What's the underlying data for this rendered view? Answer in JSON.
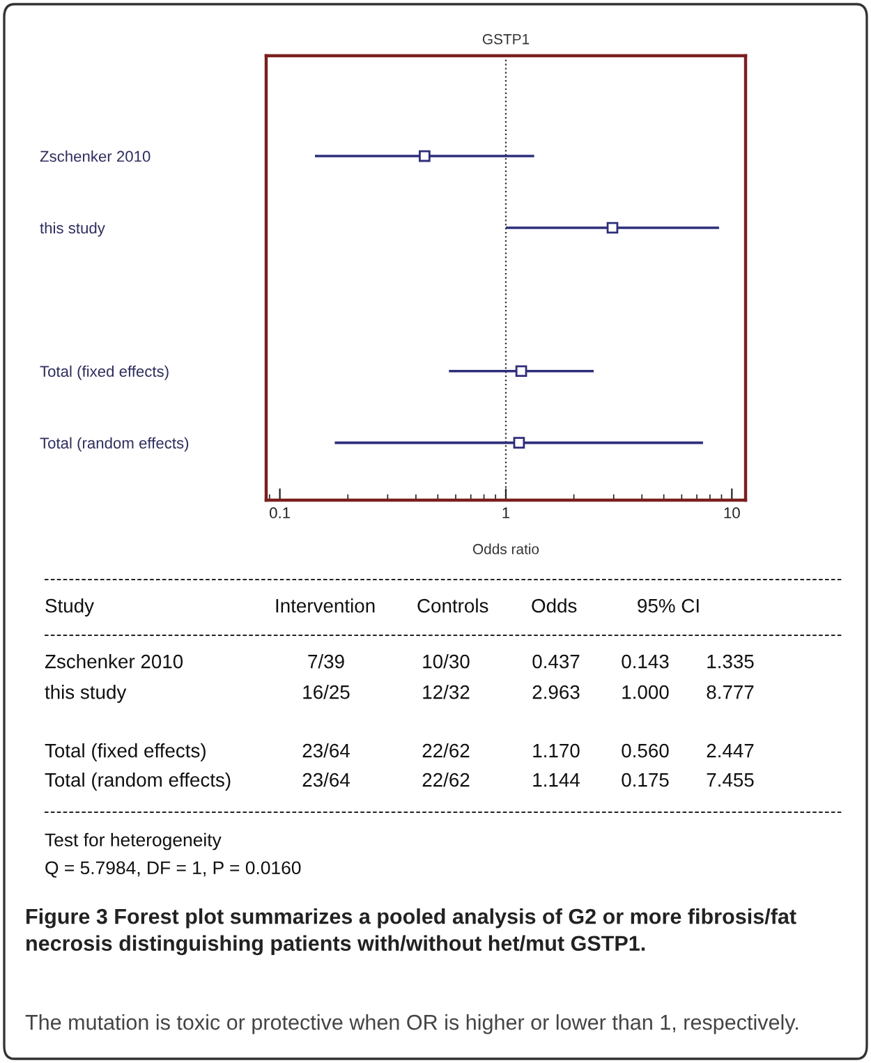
{
  "chart_data": {
    "type": "scatter",
    "orientation": "horizontal",
    "title": "GSTP1",
    "xlabel": "Odds ratio",
    "categories": [
      "Zschenker 2010",
      "this study",
      null,
      "Total (fixed effects)",
      "Total (random effects)"
    ],
    "series": [
      {
        "color": "#2e2e7a",
        "values": [
          0.437,
          2.963,
          null,
          1.17,
          1.144
        ],
        "errors": [
          [
            0.143,
            1.335
          ],
          [
            1.0,
            8.777
          ],
          null,
          [
            0.56,
            2.447
          ],
          [
            0.175,
            7.455
          ]
        ]
      }
    ],
    "marker": "square",
    "log": "x",
    "xlim": [
      0.087,
      11.5
    ],
    "xticks": [
      0.1,
      1,
      10
    ],
    "grid": false,
    "legend": false,
    "ref_lines": [
      {
        "axis": "x",
        "value": 1,
        "line_style": "dotted",
        "color": "#333333"
      }
    ],
    "annotations": [
      "Study",
      "Intervention",
      "Controls",
      "Odds",
      "95% CI",
      "Zschenker 2010",
      "7/39",
      "10/30",
      "0.437",
      "0.143",
      "1.335",
      "this study",
      "16/25",
      "12/32",
      "2.963",
      "1.000",
      "8.777",
      "Total (fixed effects)",
      "23/64",
      "22/62",
      "1.170",
      "0.560",
      "2.447",
      "Total (random effects)",
      "23/64",
      "22/62",
      "1.144",
      "0.175",
      "7.455",
      "Test for heterogeneity",
      "Q = 5.7984, DF = 1, P = 0.0160",
      "Figure 3 Forest plot summarizes a pooled analysis of G2 or more fibrosis/fat necrosis distinguishing patients with/without het/mut GSTP1.",
      "The mutation is toxic or protective when OR is higher or lower than 1, respectively."
    ]
  }
}
